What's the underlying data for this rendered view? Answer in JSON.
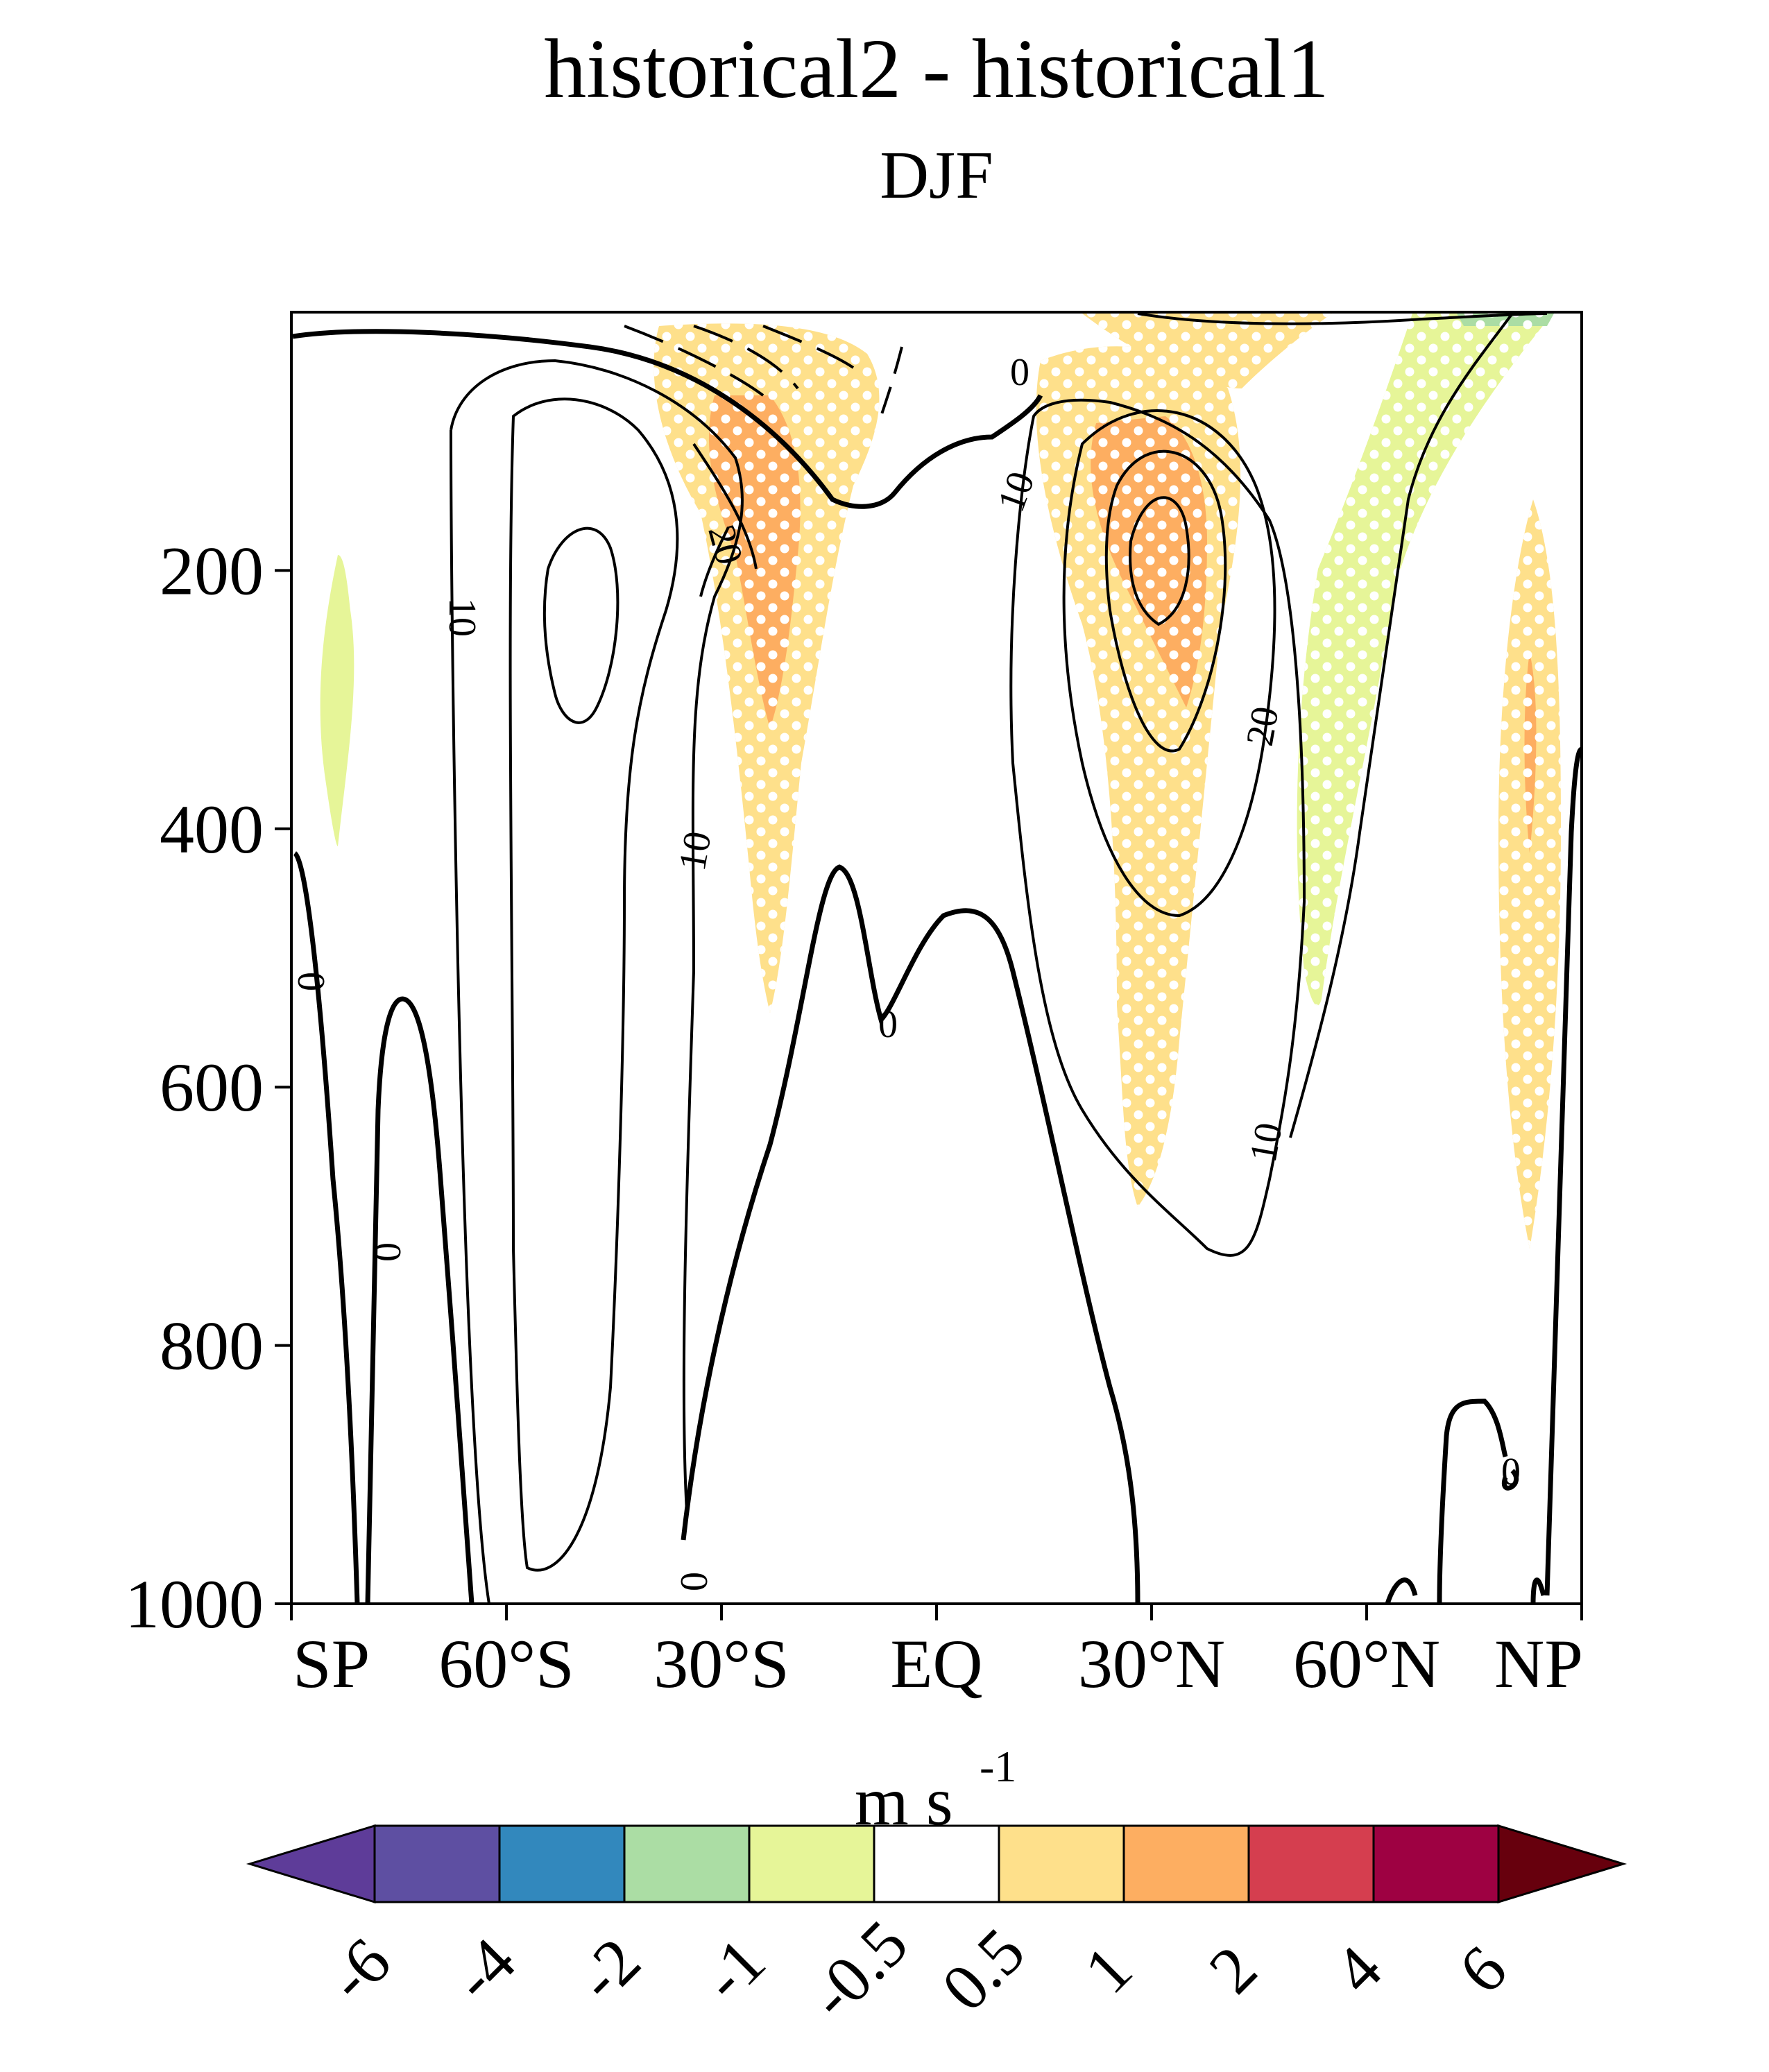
{
  "chart_data": {
    "type": "contour",
    "title": "historical2 - historical1",
    "subtitle": "DJF",
    "xlabel": "",
    "ylabel": "",
    "x_ticks": [
      {
        "value": -90,
        "label": "SP"
      },
      {
        "value": -60,
        "label": "60°S"
      },
      {
        "value": -30,
        "label": "30°S"
      },
      {
        "value": 0,
        "label": "EQ"
      },
      {
        "value": 30,
        "label": "30°N"
      },
      {
        "value": 60,
        "label": "60°N"
      },
      {
        "value": 90,
        "label": "NP"
      }
    ],
    "y_ticks": [
      {
        "value": 200,
        "label": "200"
      },
      {
        "value": 400,
        "label": "400"
      },
      {
        "value": 600,
        "label": "600"
      },
      {
        "value": 800,
        "label": "800"
      },
      {
        "value": 1000,
        "label": "1000"
      }
    ],
    "xlim": [
      -90,
      90
    ],
    "ylim": [
      1000,
      0
    ],
    "contour_labels": [
      "0",
      "0",
      "0",
      "0",
      "0",
      "0",
      "10",
      "10",
      "10",
      "10",
      "20",
      "20"
    ],
    "colorbar": {
      "units_base": "m s",
      "units_exp": "-1",
      "levels": [
        "-6",
        "-4",
        "-2",
        "-1",
        "-0.5",
        "0.5",
        "1",
        "2",
        "4",
        "6"
      ],
      "colors": [
        "#5e3c99",
        "#5e4fa2",
        "#3288bd",
        "#abdda4",
        "#e6f598",
        "#ffffff",
        "#fee08b",
        "#fdae61",
        "#d53e4f",
        "#9e0142",
        "#67000d"
      ]
    }
  }
}
